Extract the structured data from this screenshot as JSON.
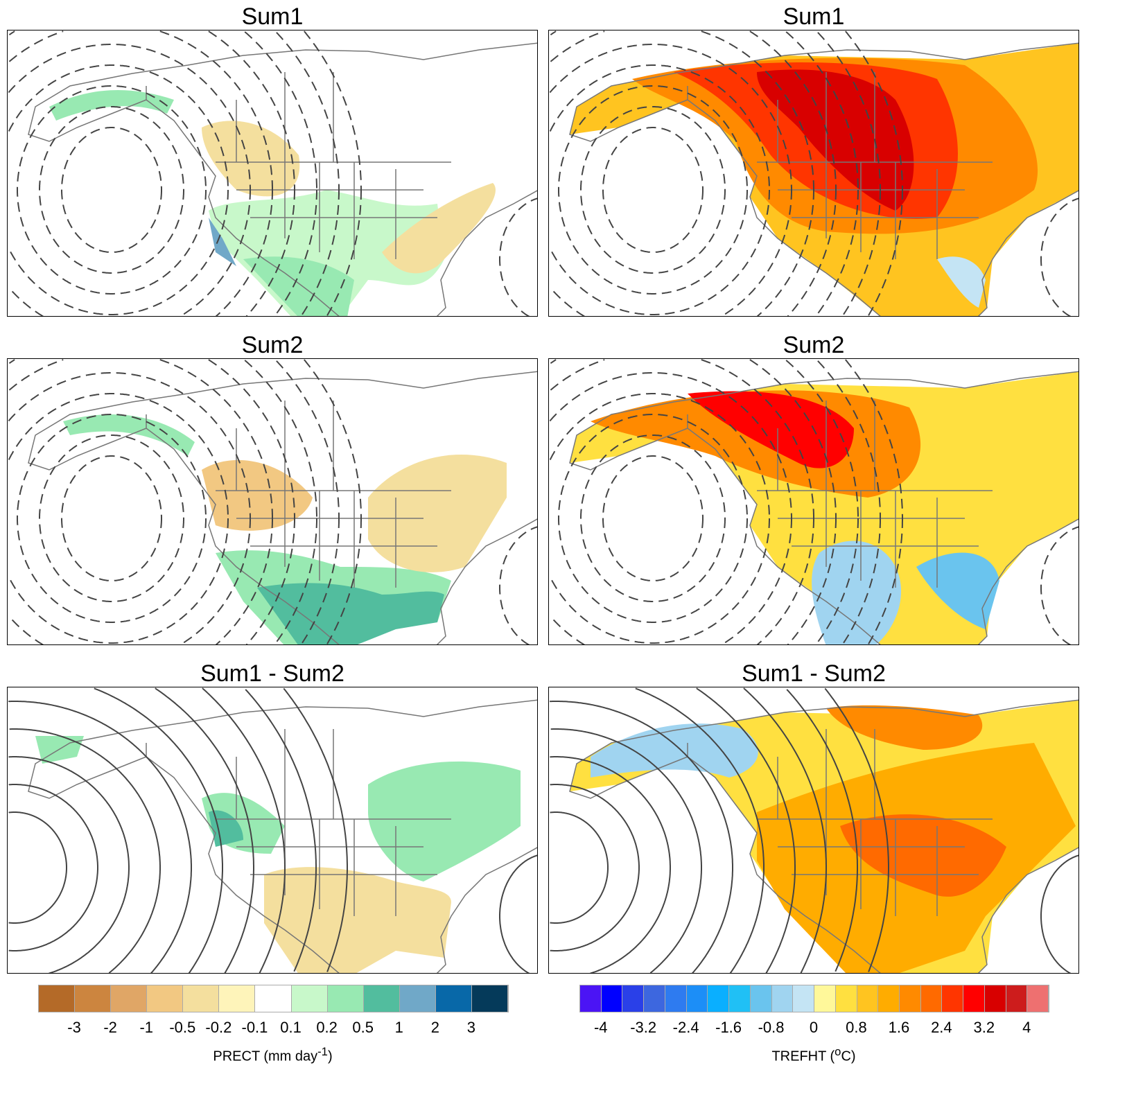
{
  "panels": [
    {
      "title": "Sum1",
      "field": "prect",
      "contours": "dashed"
    },
    {
      "title": "Sum1",
      "field": "trefht",
      "contours": "dashed"
    },
    {
      "title": "Sum2",
      "field": "prect",
      "contours": "dashed"
    },
    {
      "title": "Sum2",
      "field": "trefht",
      "contours": "dashed"
    },
    {
      "title": "Sum1 - Sum2",
      "field": "prect",
      "contours": "solid"
    },
    {
      "title": "Sum1 - Sum2",
      "field": "trefht",
      "contours": "solid"
    }
  ],
  "colorbars": {
    "prect": {
      "label": "PRECT (mm day",
      "label_sup": "-1",
      "label_end": ")",
      "levels": [
        "-3",
        "-2",
        "-1",
        "-0.5",
        "-0.2",
        "-0.1",
        "0.1",
        "0.2",
        "0.5",
        "1",
        "2",
        "3"
      ],
      "colors": [
        "#B46A28",
        "#CC853F",
        "#E0A666",
        "#F2C882",
        "#F4DF9E",
        "#FEF4BA",
        "#FFFFFF",
        "#C8F8CA",
        "#98E9B2",
        "#52BD9E",
        "#70A8C8",
        "#0868A8",
        "#053A5A"
      ]
    },
    "trefht": {
      "label": "TREFHT (",
      "label_sup": "o",
      "label_end": "C)",
      "levels": [
        "-4",
        "",
        "-3.2",
        "",
        "-2.4",
        "",
        "-1.6",
        "",
        "-0.8",
        "",
        "0",
        "",
        "0.8",
        "",
        "1.6",
        "",
        "2.4",
        "",
        "3.2",
        "",
        "4"
      ],
      "colors": [
        "#4B14F5",
        "#0000FF",
        "#2A40E8",
        "#3D67DF",
        "#2E7BF0",
        "#1C8EF7",
        "#0AAFFF",
        "#20C0F5",
        "#6AC4EE",
        "#A0D4F0",
        "#C4E4F4",
        "#FFF89A",
        "#FFE040",
        "#FFC420",
        "#FFAC00",
        "#FF8A00",
        "#FF6A00",
        "#FF3500",
        "#FF0000",
        "#D80000",
        "#CD1C1C",
        "#EE7070"
      ]
    }
  }
}
